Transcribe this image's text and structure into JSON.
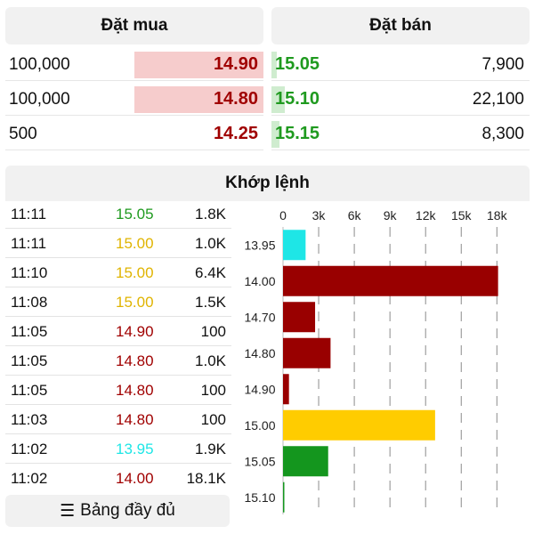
{
  "order_book": {
    "buy_title": "Đặt mua",
    "sell_title": "Đặt bán",
    "colors": {
      "buy_price": "#a00000",
      "sell_price": "#1f9a1f",
      "buy_fill": "#f6cccc",
      "sell_fill": "#cfeccf"
    },
    "rows": [
      {
        "buy_vol": "100,000",
        "buy_price": "14.90",
        "buy_level": 0.5,
        "sell_price": "15.05",
        "sell_vol": "7,900",
        "sell_level": 0.02
      },
      {
        "buy_vol": "100,000",
        "buy_price": "14.80",
        "buy_level": 0.5,
        "sell_price": "15.10",
        "sell_vol": "22,100",
        "sell_level": 0.05
      },
      {
        "buy_vol": "500",
        "buy_price": "14.25",
        "buy_level": 0.0,
        "sell_price": "15.15",
        "sell_vol": "8,300",
        "sell_level": 0.03
      }
    ]
  },
  "matches": {
    "title": "Khớp lệnh",
    "rows": [
      {
        "time": "11:11",
        "price": "15.05",
        "vol": "1.8K",
        "color": "#1f9a1f"
      },
      {
        "time": "11:11",
        "price": "15.00",
        "vol": "1.0K",
        "color": "#e0b400"
      },
      {
        "time": "11:10",
        "price": "15.00",
        "vol": "6.4K",
        "color": "#e0b400"
      },
      {
        "time": "11:08",
        "price": "15.00",
        "vol": "1.5K",
        "color": "#e0b400"
      },
      {
        "time": "11:05",
        "price": "14.90",
        "vol": "100",
        "color": "#a00000"
      },
      {
        "time": "11:05",
        "price": "14.80",
        "vol": "1.0K",
        "color": "#a00000"
      },
      {
        "time": "11:05",
        "price": "14.80",
        "vol": "100",
        "color": "#a00000"
      },
      {
        "time": "11:03",
        "price": "14.80",
        "vol": "100",
        "color": "#a00000"
      },
      {
        "time": "11:02",
        "price": "13.95",
        "vol": "1.9K",
        "color": "#1ee6e6"
      },
      {
        "time": "11:02",
        "price": "14.00",
        "vol": "18.1K",
        "color": "#a00000"
      }
    ],
    "full_button_label": "Bảng đầy đủ",
    "full_button_icon": "list-icon"
  },
  "chart_data": {
    "type": "bar",
    "orientation": "horizontal",
    "categories": [
      "13.95",
      "14.00",
      "14.70",
      "14.80",
      "14.90",
      "15.00",
      "15.05",
      "15.10"
    ],
    "values": [
      1900,
      18100,
      2700,
      4000,
      500,
      12800,
      3800,
      100
    ],
    "colors": [
      "#1ee6e6",
      "#990000",
      "#990000",
      "#990000",
      "#990000",
      "#ffcc00",
      "#14961e",
      "#14961e"
    ],
    "xticks": [
      "0",
      "3k",
      "6k",
      "9k",
      "12k",
      "15k",
      "18k"
    ],
    "xtick_values": [
      0,
      3000,
      6000,
      9000,
      12000,
      15000,
      18000
    ],
    "xlim": [
      0,
      18000
    ],
    "grid": true
  }
}
